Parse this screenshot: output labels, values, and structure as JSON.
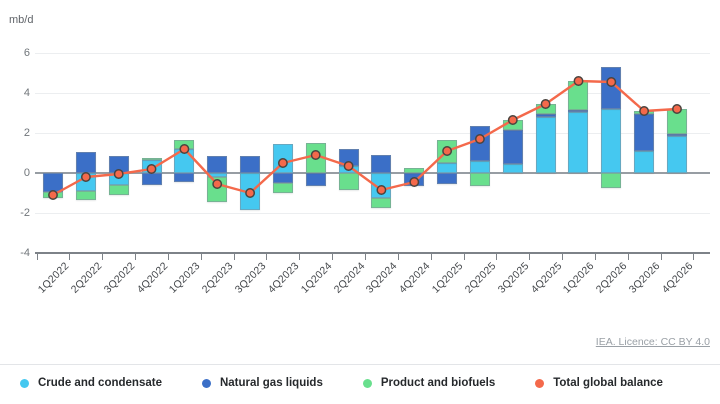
{
  "units_label": "mb/d",
  "attribution": "IEA. Licence: CC BY 4.0",
  "colors": {
    "crude": "#45c8f0",
    "ngl": "#3b6fc7",
    "product": "#69df8d",
    "total": "#f4694b",
    "marker_ring": "#4a443f",
    "grid": "#eceef0",
    "zero_line": "#979da3",
    "axis": "#7d8288"
  },
  "legend": {
    "items": [
      {
        "key": "crude",
        "label": "Crude and condensate"
      },
      {
        "key": "ngl",
        "label": "Natural gas liquids"
      },
      {
        "key": "product",
        "label": "Product and biofuels"
      },
      {
        "key": "total",
        "label": "Total global balance"
      }
    ]
  },
  "chart_data": {
    "type": "bar",
    "subtype": "stacked-bars-with-line-overlay",
    "title": "",
    "ylabel": "mb/d",
    "xlabel": "",
    "ylim": [
      -4,
      6
    ],
    "yticks": [
      6,
      4,
      2,
      0,
      -2,
      -4
    ],
    "grid": "horizontal",
    "legend_position": "bottom",
    "categories": [
      "1Q2022",
      "2Q2022",
      "3Q2022",
      "4Q2022",
      "1Q2023",
      "2Q2023",
      "3Q2023",
      "4Q2023",
      "1Q2024",
      "2Q2024",
      "3Q2024",
      "4Q2024",
      "1Q2025",
      "2Q2025",
      "3Q2025",
      "4Q2025",
      "1Q2026",
      "2Q2026",
      "3Q2026",
      "4Q2026"
    ],
    "series": [
      {
        "key": "crude",
        "name": "Crude and condensate",
        "values": [
          0.0,
          -0.9,
          -0.6,
          0.65,
          1.2,
          -0.2,
          -1.85,
          1.45,
          0.0,
          0.35,
          -1.25,
          0.0,
          0.5,
          0.6,
          0.45,
          2.8,
          3.05,
          3.2,
          1.1,
          1.85
        ]
      },
      {
        "key": "ngl",
        "name": "Natural gas liquids",
        "values": [
          -0.95,
          1.05,
          0.85,
          -0.6,
          -0.45,
          0.85,
          0.85,
          -0.5,
          -0.65,
          0.85,
          0.9,
          -0.65,
          -0.55,
          1.75,
          1.7,
          0.15,
          0.1,
          2.1,
          1.85,
          0.1
        ]
      },
      {
        "key": "product",
        "name": "Product and biofuels",
        "values": [
          -0.3,
          -0.45,
          -0.5,
          0.1,
          0.45,
          -1.25,
          0.0,
          -0.5,
          1.5,
          -0.85,
          -0.5,
          0.25,
          1.15,
          -0.65,
          0.5,
          0.5,
          1.45,
          -0.75,
          0.15,
          1.25
        ]
      }
    ],
    "line": {
      "key": "total",
      "name": "Total global balance",
      "values": [
        -1.1,
        -0.2,
        -0.05,
        0.2,
        1.2,
        -0.55,
        -1.0,
        0.5,
        0.9,
        0.35,
        -0.85,
        -0.45,
        1.1,
        1.7,
        2.65,
        3.45,
        4.6,
        4.55,
        3.1,
        3.2
      ]
    }
  }
}
